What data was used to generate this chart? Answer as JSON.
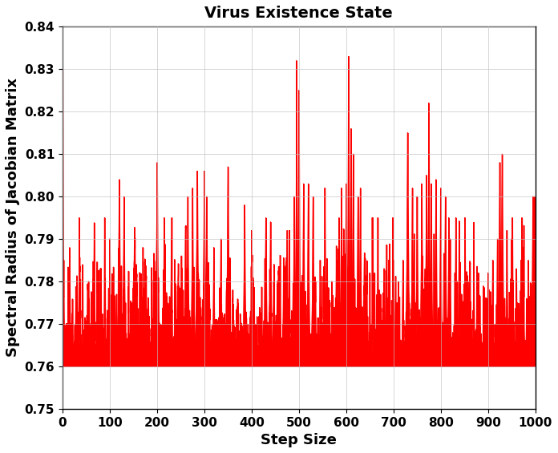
{
  "title": "Virus Existence State",
  "xlabel": "Step Size",
  "ylabel": "Spectral Radius of Jacobian Matrix",
  "xlim": [
    0,
    1000
  ],
  "ylim": [
    0.75,
    0.84
  ],
  "yticks": [
    0.75,
    0.76,
    0.77,
    0.78,
    0.79,
    0.8,
    0.81,
    0.82,
    0.83,
    0.84
  ],
  "xticks": [
    0,
    100,
    200,
    300,
    400,
    500,
    600,
    700,
    800,
    900,
    1000
  ],
  "line_color": "#FF0000",
  "fill_color": "#FF0000",
  "background_color": "#FFFFFF",
  "grid_color": "#C0C0C0",
  "n_steps": 1000,
  "base_value": 0.76,
  "title_fontsize": 14,
  "label_fontsize": 13,
  "tick_fontsize": 11
}
